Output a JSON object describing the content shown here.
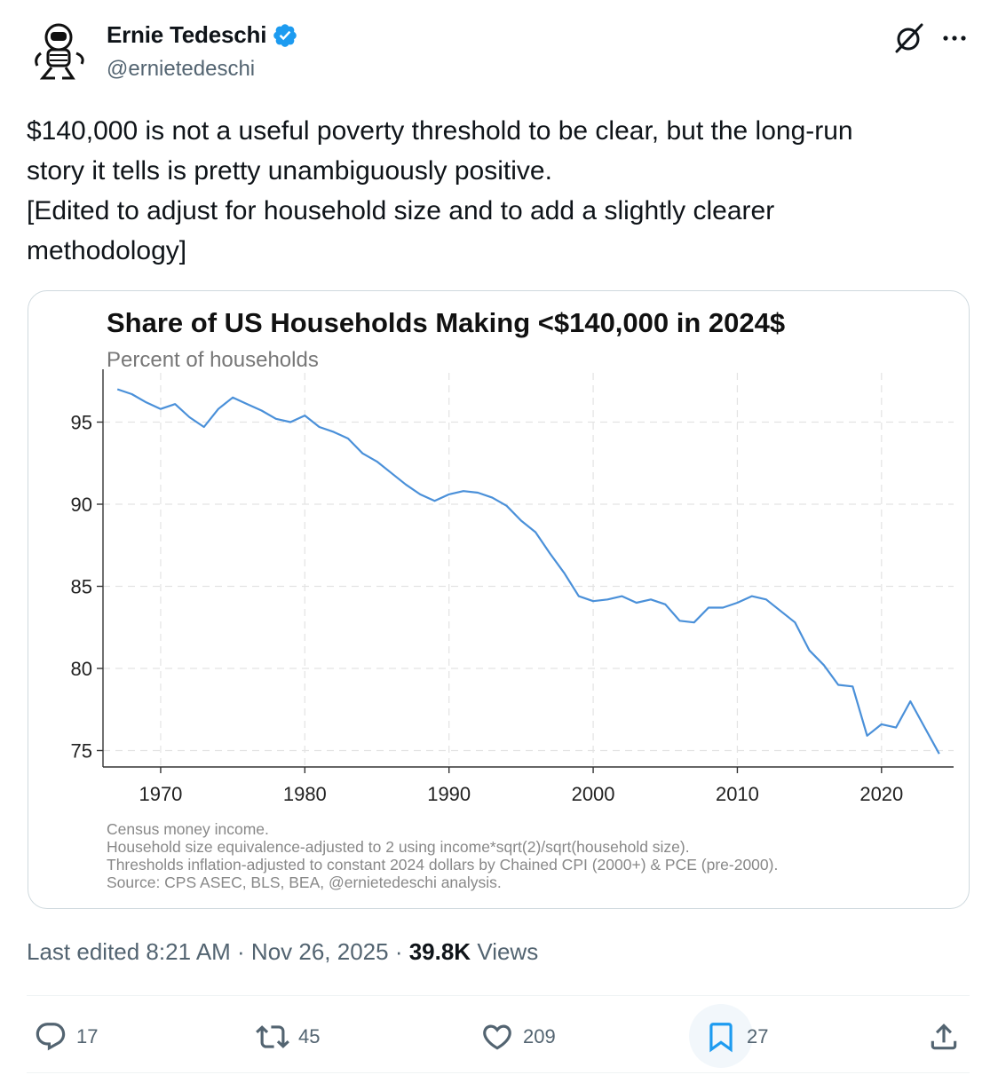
{
  "author": {
    "name": "Ernie Tedeschi",
    "handle": "@ernietedeschi"
  },
  "tweet": {
    "lines": [
      "$140,000 is not a useful poverty threshold to be clear, but the long-run",
      "story it tells is pretty unambiguously positive.",
      "[Edited to adjust for household size and to add a slightly clearer",
      "methodology]"
    ]
  },
  "chart_data": {
    "type": "line",
    "title": "Share of US Households Making <$140,000 in 2024$",
    "subtitle": "Percent of households",
    "xlabel": "",
    "ylabel": "",
    "xlim": [
      1966,
      2025
    ],
    "ylim": [
      74,
      98
    ],
    "xticks": [
      1970,
      1980,
      1990,
      2000,
      2010,
      2020
    ],
    "yticks": [
      75,
      80,
      85,
      90,
      95
    ],
    "grid": true,
    "line_color": "#4a90d9",
    "series": [
      {
        "x": [
          1967,
          1968,
          1969,
          1970,
          1971,
          1972,
          1973,
          1974,
          1975,
          1976,
          1977,
          1978,
          1979,
          1980,
          1981,
          1982,
          1983,
          1984,
          1985,
          1986,
          1987,
          1988,
          1989,
          1990,
          1991,
          1992,
          1993,
          1994,
          1995,
          1996,
          1997,
          1998,
          1999,
          2000,
          2001,
          2002,
          2003,
          2004,
          2005,
          2006,
          2007,
          2008,
          2009,
          2010,
          2011,
          2012,
          2013,
          2014,
          2015,
          2016,
          2017,
          2018,
          2019,
          2020,
          2021,
          2022,
          2023,
          2024
        ],
        "values": [
          97.0,
          96.7,
          96.2,
          95.8,
          96.1,
          95.3,
          94.7,
          95.8,
          96.5,
          96.1,
          95.7,
          95.2,
          95.0,
          95.4,
          94.7,
          94.4,
          94.0,
          93.1,
          92.6,
          91.9,
          91.2,
          90.6,
          90.2,
          90.6,
          90.8,
          90.7,
          90.4,
          89.9,
          89.0,
          88.3,
          87.0,
          85.8,
          84.4,
          84.1,
          84.2,
          84.4,
          84.0,
          84.2,
          83.9,
          82.9,
          82.8,
          83.7,
          83.7,
          84.0,
          84.4,
          84.2,
          83.5,
          82.8,
          81.1,
          80.2,
          79.0,
          78.9,
          75.9,
          76.6,
          76.4,
          78.0,
          76.4,
          74.8
        ]
      }
    ],
    "notes": [
      "Census money income.",
      "Household size equivalence-adjusted to 2 using income*sqrt(2)/sqrt(household size).",
      "Thresholds inflation-adjusted to constant 2024 dollars by Chained CPI (2000+) & PCE (pre-2000).",
      "Source: CPS ASEC, BLS, BEA, @ernietedeschi analysis."
    ]
  },
  "meta": {
    "edited": "Last edited 8:21 AM · Nov 26, 2025 · ",
    "views_count": "39.8K",
    "views_label": " Views"
  },
  "actions": {
    "replies": "17",
    "reposts": "45",
    "likes": "209",
    "bookmarks": "27"
  },
  "colors": {
    "verified": "#1d9bf0",
    "muted": "#536471",
    "line": "#4a90d9"
  },
  "icons": [
    "verified-badge-icon",
    "grok-icon",
    "more-icon",
    "reply-icon",
    "repost-icon",
    "like-icon",
    "bookmark-icon",
    "share-icon"
  ]
}
